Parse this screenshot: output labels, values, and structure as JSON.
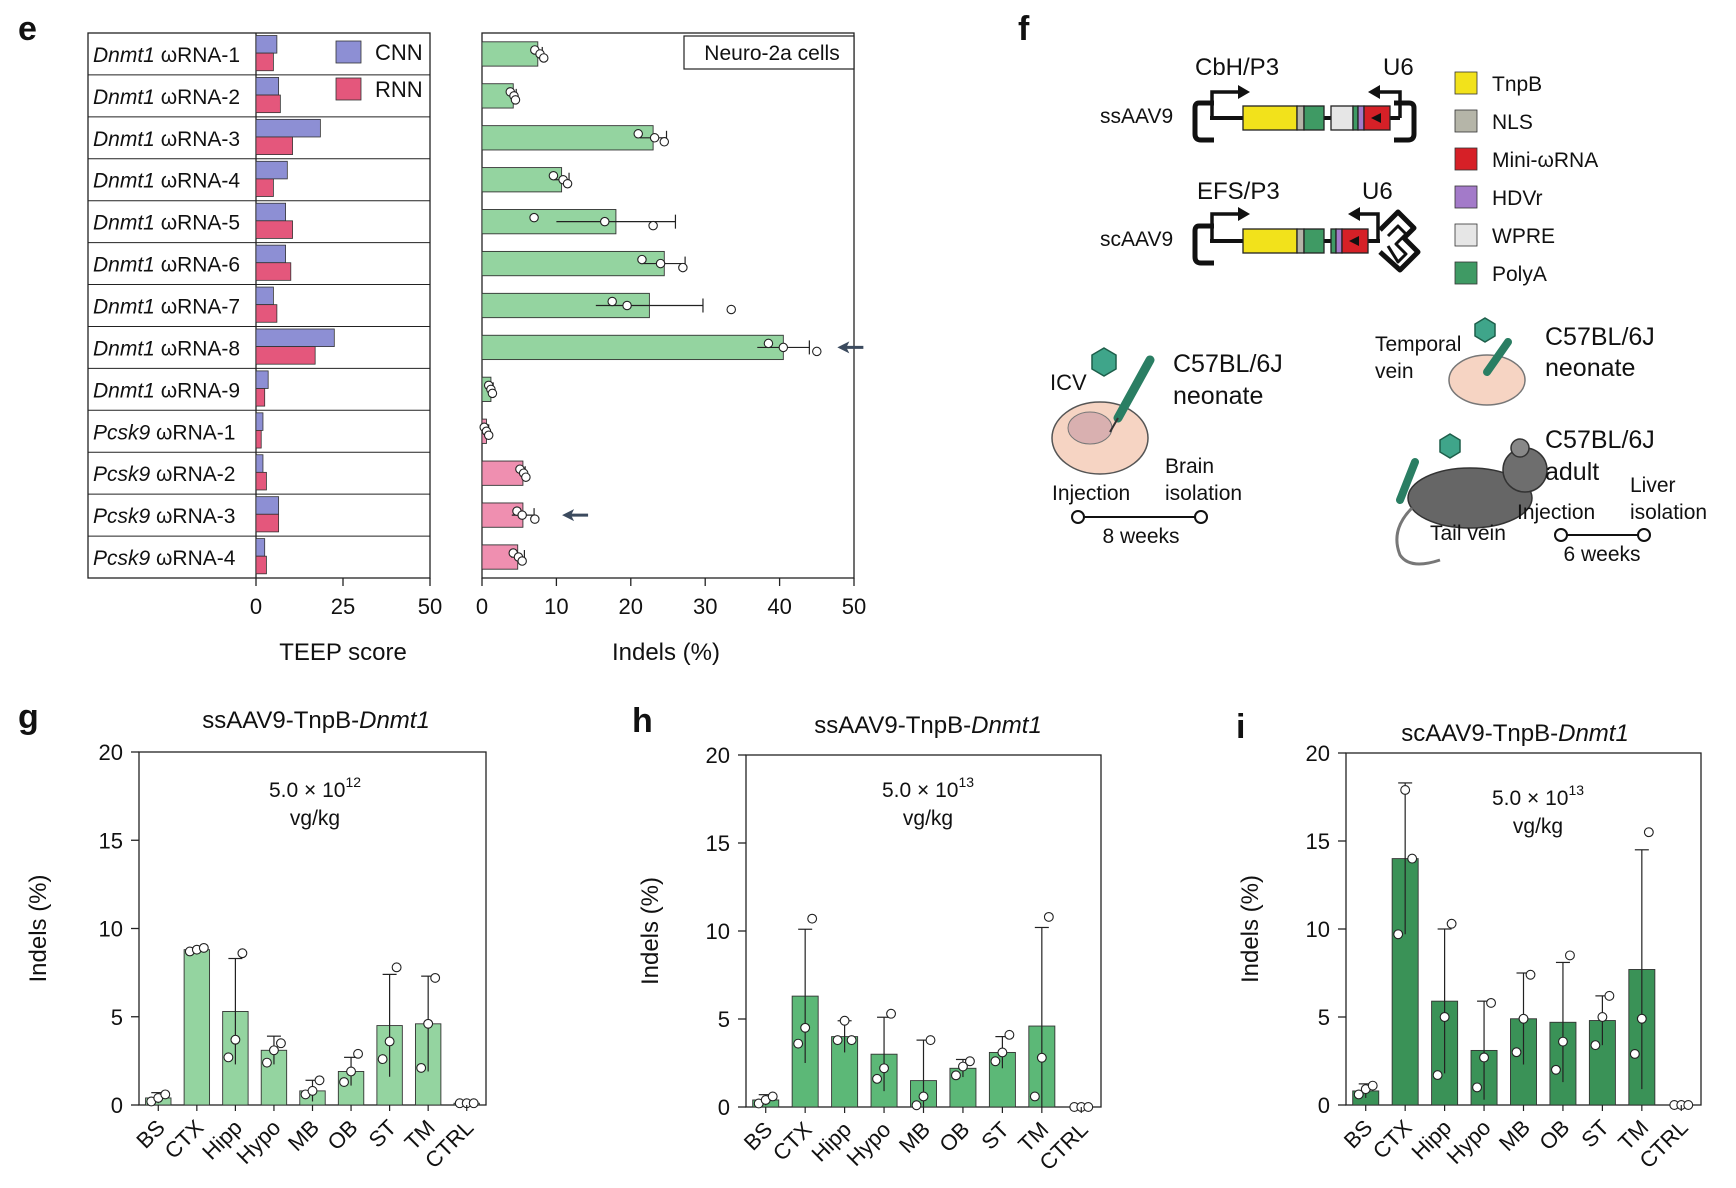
{
  "panel_letters": {
    "e": "e",
    "f": "f",
    "g": "g",
    "h": "h",
    "i": "i"
  },
  "colors": {
    "cnn": "#8d8fd4",
    "rnn": "#e4577c",
    "green_light": "#94d4a0",
    "pink_bar": "#ef8fb0",
    "green_mid": "#5cb877",
    "green_dark": "#3a9257",
    "tnpb": "#f2e21b",
    "nls": "#b5b5a8",
    "mini_wrna": "#d62027",
    "hdvr": "#a37ac9",
    "wpre": "#e6e6e6",
    "polya": "#3f9a64"
  },
  "labels": {
    "teep_axis": "TEEP score",
    "indels_axis": "Indels (%)",
    "neuro_cells": "Neuro-2a cells",
    "legend_cnn": "CNN",
    "legend_rnn": "RNN"
  },
  "construct": {
    "ss_name": "ssAAV9",
    "sc_name": "scAAV9",
    "ss_promoter": "CbH/P3",
    "sc_promoter": "EFS/P3",
    "u6": "U6",
    "legend": [
      "TnpB",
      "NLS",
      "Mini-ωRNA",
      "HDVr",
      "WPRE",
      "PolyA"
    ]
  },
  "injection": {
    "icv": "ICV",
    "neonate_strain": "C57BL/6J",
    "neonate": "neonate",
    "brain": "Brain",
    "isolation": "isolation",
    "injection": "Injection",
    "weeks8": "8 weeks",
    "temporal": "Temporal",
    "vein": "vein",
    "adult_strain": "C57BL/6J",
    "adult": "adult",
    "tail_vein": "Tail vein",
    "liver": "Liver",
    "weeks6": "6 weeks"
  },
  "chart_data": [
    {
      "type": "bar",
      "panel": "e-left",
      "orientation": "horizontal",
      "categories": [
        [
          "Dnmt1",
          " ωRNA-1"
        ],
        [
          "Dnmt1",
          " ωRNA-2"
        ],
        [
          "Dnmt1",
          " ωRNA-3"
        ],
        [
          "Dnmt1",
          " ωRNA-4"
        ],
        [
          "Dnmt1",
          " ωRNA-5"
        ],
        [
          "Dnmt1",
          " ωRNA-6"
        ],
        [
          "Dnmt1",
          " ωRNA-7"
        ],
        [
          "Dnmt1",
          " ωRNA-8"
        ],
        [
          "Dnmt1",
          " ωRNA-9"
        ],
        [
          "Pcsk9",
          " ωRNA-1"
        ],
        [
          "Pcsk9",
          " ωRNA-2"
        ],
        [
          "Pcsk9",
          " ωRNA-3"
        ],
        [
          "Pcsk9",
          " ωRNA-4"
        ]
      ],
      "series": [
        {
          "name": "CNN",
          "values": [
            6,
            6.5,
            18.5,
            9,
            8.5,
            8.5,
            5,
            22.5,
            3.5,
            2,
            2,
            6.5,
            2.5
          ]
        },
        {
          "name": "RNN",
          "values": [
            5,
            7,
            10.5,
            5,
            10.5,
            10,
            6,
            17,
            2.5,
            1.5,
            3,
            6.5,
            3
          ]
        }
      ],
      "xlabel": "TEEP score",
      "xlim": [
        0,
        50
      ],
      "xticks": [
        0,
        25,
        50
      ]
    },
    {
      "type": "bar",
      "panel": "e-right",
      "orientation": "horizontal",
      "annotation": "Neuro-2a cells",
      "values": [
        7.5,
        4.2,
        23,
        10.7,
        18,
        24.5,
        22.5,
        40.5,
        1.2,
        0.6,
        5.5,
        5.5,
        4.8
      ],
      "errors": [
        0.6,
        0.4,
        1.8,
        1.0,
        8.0,
        2.8,
        7.2,
        3.5,
        0.3,
        0.3,
        0.3,
        1.5,
        0.9
      ],
      "points": [
        [
          7.1,
          7.8,
          8.3
        ],
        [
          3.8,
          4.3,
          4.5
        ],
        [
          21,
          23.2,
          24.5
        ],
        [
          9.6,
          10.9,
          11.5
        ],
        [
          7,
          16.5,
          23
        ],
        [
          21.5,
          24,
          27
        ],
        [
          17.5,
          19.5,
          33.5
        ],
        [
          38.5,
          40.5,
          45
        ],
        [
          0.9,
          1.2,
          1.4
        ],
        [
          0.3,
          0.6,
          0.9
        ],
        [
          5.1,
          5.6,
          5.9
        ],
        [
          4.7,
          5.4,
          7.1
        ],
        [
          4.2,
          4.9,
          5.4
        ]
      ],
      "highlight_colors": [
        "green",
        "green",
        "green",
        "green",
        "green",
        "green",
        "green",
        "green",
        "green",
        "pink",
        "pink",
        "pink",
        "pink"
      ],
      "arrows": [
        7,
        11
      ],
      "xlabel": "Indels (%)",
      "xlim": [
        0,
        50
      ],
      "xticks": [
        0,
        10,
        20,
        30,
        40,
        50
      ]
    },
    {
      "type": "bar",
      "panel": "g",
      "title_plain": "ssAAV9-TnpB-",
      "title_italic": "Dnmt1",
      "dose": "5.0 × 10",
      "dose_exp": "12",
      "dose_unit": "vg/kg",
      "categories": [
        "BS",
        "CTX",
        "Hipp",
        "Hypo",
        "MB",
        "OB",
        "ST",
        "TM",
        "CTRL"
      ],
      "values": [
        0.4,
        8.8,
        5.3,
        3.1,
        0.8,
        1.9,
        4.5,
        4.6,
        0.1
      ],
      "errors": [
        0.3,
        0.1,
        3.0,
        0.8,
        0.6,
        0.8,
        2.9,
        2.7,
        0.1
      ],
      "points": [
        [
          0.2,
          0.4,
          0.6
        ],
        [
          8.7,
          8.8,
          8.9
        ],
        [
          2.7,
          3.7,
          8.6
        ],
        [
          2.4,
          3.1,
          3.5
        ],
        [
          0.6,
          0.8,
          1.4
        ],
        [
          1.3,
          1.9,
          2.9
        ],
        [
          2.6,
          3.6,
          7.8
        ],
        [
          2.1,
          4.6,
          7.2
        ],
        [
          0.1,
          0.1,
          0.1
        ]
      ],
      "ylabel": "Indels (%)",
      "ylim": [
        0,
        20
      ],
      "yticks": [
        0,
        5,
        10,
        15,
        20
      ]
    },
    {
      "type": "bar",
      "panel": "h",
      "title_plain": "ssAAV9-TnpB-",
      "title_italic": "Dnmt1",
      "dose": "5.0 × 10",
      "dose_exp": "13",
      "dose_unit": "vg/kg",
      "categories": [
        "BS",
        "CTX",
        "Hipp",
        "Hypo",
        "MB",
        "OB",
        "ST",
        "TM",
        "CTRL"
      ],
      "values": [
        0.4,
        6.3,
        4.0,
        3.0,
        1.5,
        2.2,
        3.1,
        4.6,
        0.0
      ],
      "errors": [
        0.3,
        3.8,
        0.9,
        2.1,
        2.3,
        0.5,
        0.9,
        5.6,
        0.05
      ],
      "points": [
        [
          0.2,
          0.4,
          0.6
        ],
        [
          3.6,
          4.5,
          10.7
        ],
        [
          3.8,
          4.9,
          3.8
        ],
        [
          1.6,
          2.2,
          5.3
        ],
        [
          0.1,
          0.6,
          3.8
        ],
        [
          1.8,
          2.3,
          2.6
        ],
        [
          2.6,
          3.1,
          4.1
        ],
        [
          0.6,
          2.8,
          10.8
        ],
        [
          0,
          0,
          0
        ]
      ],
      "ylabel": "Indels (%)",
      "ylim": [
        0,
        20
      ],
      "yticks": [
        0,
        5,
        10,
        15,
        20
      ]
    },
    {
      "type": "bar",
      "panel": "i",
      "title_plain": "scAAV9-TnpB-",
      "title_italic": "Dnmt1",
      "dose": "5.0 × 10",
      "dose_exp": "13",
      "dose_unit": "vg/kg",
      "categories": [
        "BS",
        "CTX",
        "Hipp",
        "Hypo",
        "MB",
        "OB",
        "ST",
        "TM",
        "CTRL"
      ],
      "values": [
        0.8,
        14.0,
        5.9,
        3.1,
        4.9,
        4.7,
        4.8,
        7.7,
        0.0
      ],
      "errors": [
        0.4,
        4.3,
        4.1,
        2.8,
        2.6,
        3.4,
        1.4,
        6.8,
        0.05
      ],
      "points": [
        [
          0.6,
          0.9,
          1.1
        ],
        [
          9.7,
          17.9,
          14.0
        ],
        [
          1.7,
          5.0,
          10.3
        ],
        [
          1.0,
          2.7,
          5.8
        ],
        [
          3.0,
          4.9,
          7.4
        ],
        [
          2.0,
          3.6,
          8.5
        ],
        [
          3.4,
          5.0,
          6.2
        ],
        [
          2.9,
          4.9,
          15.5
        ],
        [
          0,
          0,
          0
        ]
      ],
      "ylabel": "Indels (%)",
      "ylim": [
        0,
        20
      ],
      "yticks": [
        0,
        5,
        10,
        15,
        20
      ]
    }
  ]
}
